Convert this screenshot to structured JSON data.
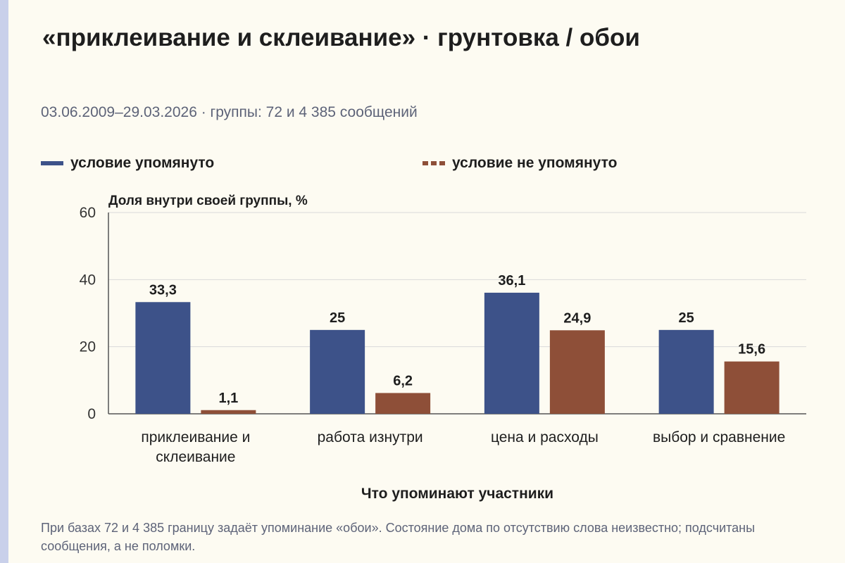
{
  "title": "«приклеивание и склеивание» · грунтовка / обои",
  "subtitle": "03.06.2009–29.03.2026 · группы: 72 и 4 385 сообщений",
  "footnote": "При базах 72 и 4 385 границу задаёт упоминание «обои». Состояние дома по отсутствию слова неизвестно; подсчитаны сообщения, а не поломки.",
  "colors": {
    "mentioned": "#3d5289",
    "not_mentioned": "#8e4f38",
    "grid": "#d9d9d9",
    "axis": "#555555"
  },
  "chart_data": {
    "type": "bar",
    "title": "",
    "ylabel": "Доля внутри своей группы, %",
    "xlabel": "Что упоминают участники",
    "ylim": [
      0,
      60
    ],
    "yticks": [
      0,
      20,
      40,
      60
    ],
    "grid": true,
    "legend_position": "top",
    "categories": [
      [
        "приклеивание и",
        "склеивание"
      ],
      [
        "работа изнутри"
      ],
      [
        "цена и расходы"
      ],
      [
        "выбор и сравнение"
      ]
    ],
    "series": [
      {
        "name": "условие упомянуто",
        "values": [
          33.3,
          25,
          36.1,
          25
        ],
        "labels": [
          "33,3",
          "25",
          "36,1",
          "25"
        ]
      },
      {
        "name": "условие не упомянуто",
        "values": [
          1.1,
          6.2,
          24.9,
          15.6
        ],
        "labels": [
          "1,1",
          "6,2",
          "24,9",
          "15,6"
        ]
      }
    ]
  }
}
